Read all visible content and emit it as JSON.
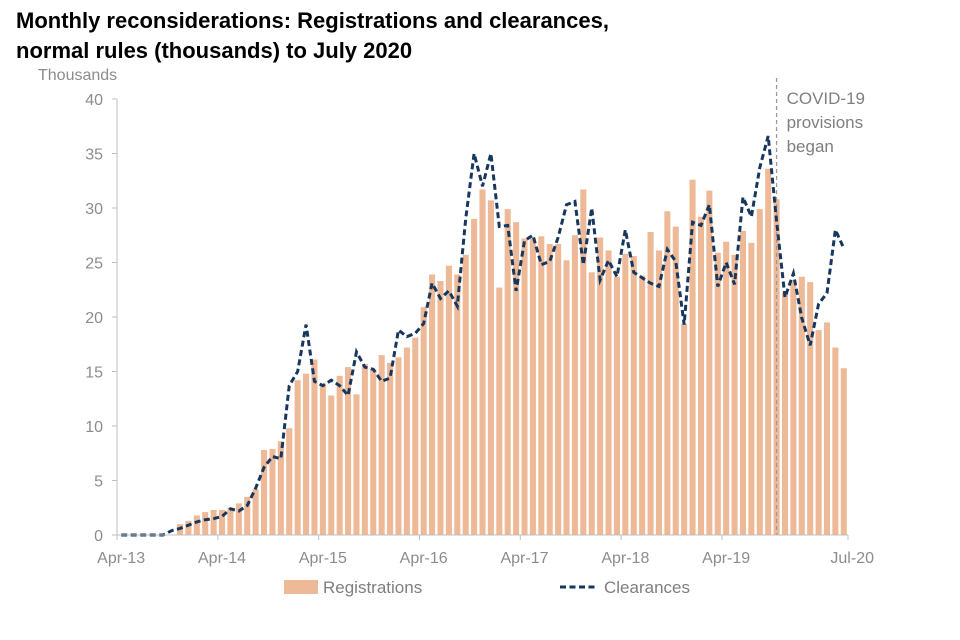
{
  "chart_data": {
    "type": "bar+line",
    "title_line1": "Monthly reconsiderations: Registrations and clearances,",
    "title_line2": "normal rules (thousands) to July 2020",
    "ylabel": "Thousands",
    "ylim": [
      0,
      40
    ],
    "yticks": [
      "0",
      "5",
      "10",
      "15",
      "20",
      "25",
      "30",
      "35",
      "40"
    ],
    "ytick_values": [
      0,
      5,
      10,
      15,
      20,
      25,
      30,
      35,
      40
    ],
    "xtick_labels": [
      "Apr-13",
      "Apr-14",
      "Apr-15",
      "Apr-16",
      "Apr-17",
      "Apr-18",
      "Apr-19",
      "Jul-20"
    ],
    "xtick_indices": [
      0,
      12,
      24,
      36,
      48,
      60,
      72,
      87
    ],
    "start_month": "Apr-13",
    "end_month": "Jul-20",
    "series": [
      {
        "name": "Registrations",
        "style": "bar",
        "color": "#edb996",
        "values": [
          0,
          0,
          0,
          0,
          0,
          0,
          0,
          1,
          1.3,
          1.8,
          2.1,
          2.3,
          2.3,
          2.5,
          2.9,
          3.5,
          4.2,
          7.8,
          7.9,
          8.6,
          9.8,
          14.2,
          14.8,
          16.1,
          13.9,
          12.8,
          14.6,
          15.4,
          12.9,
          15.7,
          15.2,
          16.5,
          15.8,
          16.3,
          17.2,
          18.1,
          20.9,
          23.9,
          23.3,
          24.7,
          23.9,
          25.7,
          29,
          31.7,
          30.7,
          22.7,
          29.9,
          28.7,
          27.2,
          27.2,
          27.4,
          26.7,
          26.7,
          25.2,
          27.5,
          31.7,
          24.1,
          27.3,
          26.1,
          23.7,
          25.8,
          25.6,
          23.8,
          27.8,
          26.1,
          29.7,
          28.3,
          19.4,
          32.6,
          29.2,
          31.6,
          25.9,
          26.9,
          25.7,
          27.9,
          26.8,
          29.9,
          33.6,
          30.8,
          22.2,
          23.3,
          23.7,
          23.2,
          18.8,
          19.5,
          17.2,
          15.3
        ]
      },
      {
        "name": "Clearances",
        "style": "dashed-line",
        "color": "#17375e",
        "values": [
          0,
          0,
          0,
          0,
          0,
          0,
          0.4,
          0.6,
          0.9,
          1.2,
          1.4,
          1.5,
          1.7,
          2.4,
          2.2,
          2.7,
          4.3,
          6.2,
          7.2,
          7.0,
          13.7,
          15.0,
          19.3,
          14.1,
          13.7,
          14.2,
          13.7,
          12.8,
          16.8,
          15.4,
          15.2,
          14.1,
          14.4,
          18.8,
          18.2,
          18.5,
          19.4,
          23.1,
          21.7,
          22.4,
          21.0,
          29.0,
          35.0,
          32.0,
          35.0,
          28.3,
          28.4,
          22.4,
          27.0,
          27.5,
          24.8,
          25.1,
          27.3,
          30.3,
          30.6,
          24.8,
          30.0,
          23.4,
          25.2,
          23.7,
          28.0,
          24.1,
          23.6,
          23.1,
          22.8,
          26.2,
          25.1,
          19.3,
          28.7,
          28.4,
          30.3,
          22.8,
          25.0,
          23.0,
          31.0,
          29.2,
          33.7,
          36.6,
          28.8,
          21.8,
          24.0,
          19.9,
          17.4,
          21.2,
          22.2,
          28.0,
          26.3
        ]
      }
    ],
    "annotation": {
      "lines": [
        "COVID-19",
        "provisions",
        "began"
      ],
      "at_index": 78.5
    },
    "legend": {
      "placement": "bottom",
      "items": [
        "Registrations",
        "Clearances"
      ]
    },
    "grid": false
  }
}
